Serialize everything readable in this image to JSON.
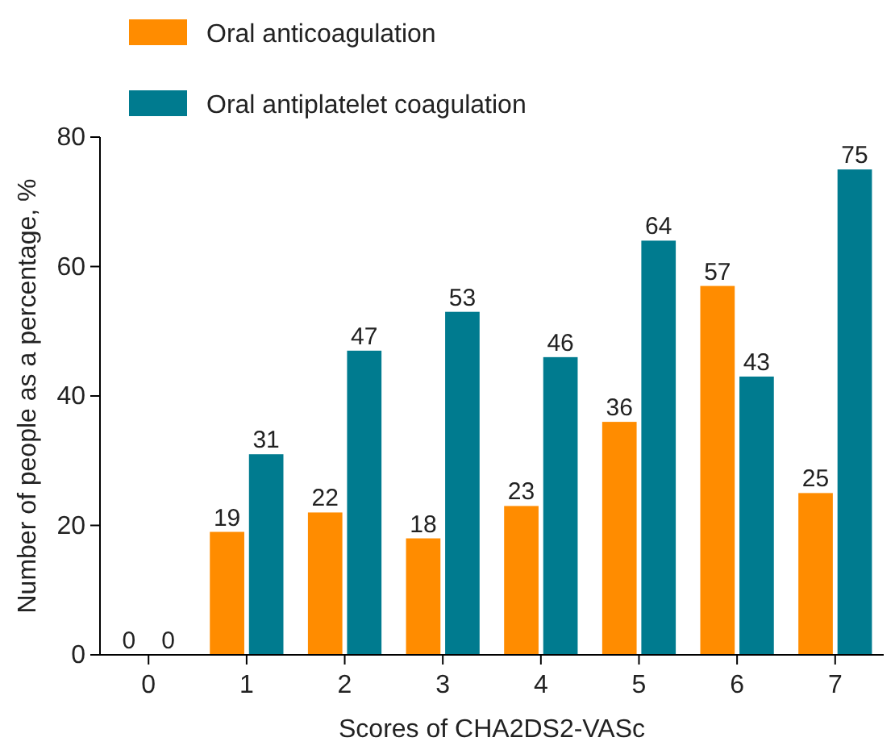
{
  "chart_data": {
    "type": "bar",
    "xlabel": "Scores of CHA2DS2-VASc",
    "ylabel": "Number of people as a percentage, %",
    "categories": [
      "0",
      "1",
      "2",
      "3",
      "4",
      "5",
      "6",
      "7"
    ],
    "series": [
      {
        "name": "Oral anticoagulation",
        "color": "#ff8c00",
        "values": [
          0,
          19,
          22,
          18,
          23,
          36,
          57,
          25
        ]
      },
      {
        "name": "Oral antiplatelet coagulation",
        "color": "#007b8f",
        "values": [
          0,
          31,
          47,
          53,
          46,
          64,
          43,
          75
        ]
      }
    ],
    "ylim": [
      0,
      80
    ],
    "yticks": [
      0,
      20,
      40,
      60,
      80
    ],
    "data_labels": true,
    "legend": "top left",
    "grid": false
  }
}
